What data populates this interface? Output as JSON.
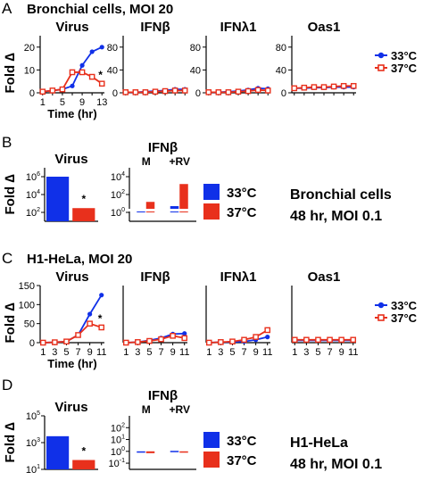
{
  "colors": {
    "c33": "#1030e8",
    "c37": "#e8301c",
    "axis": "#000000"
  },
  "chart_data": [
    {
      "panel": "A",
      "type": "line",
      "title": "Bronchial cells, MOI 20",
      "ylabel": "Fold ∆",
      "xlabel": "Time (hr)",
      "legend": {
        "placement": "right",
        "entries": [
          "33°C",
          "37°C"
        ]
      },
      "subplots": [
        {
          "title": "Virus",
          "ylim": [
            0,
            25
          ],
          "yticks": [
            "0",
            "10",
            "20"
          ],
          "xticks": [
            "1",
            "5",
            "9",
            "13"
          ],
          "annotation": "*",
          "x": [
            1,
            3,
            5,
            7,
            9,
            11,
            13
          ],
          "series": [
            {
              "name": "33°C",
              "values": [
                0.5,
                1,
                1.5,
                3,
                12,
                18,
                20
              ]
            },
            {
              "name": "37°C",
              "values": [
                0.5,
                1,
                1.5,
                9,
                9,
                7,
                4
              ]
            }
          ]
        },
        {
          "title": "IFNβ",
          "ylim": [
            0,
            100
          ],
          "yticks": [
            "0",
            "40",
            "80"
          ],
          "xticks": [],
          "x": [
            1,
            3,
            5,
            7,
            9,
            11,
            13
          ],
          "series": [
            {
              "name": "33°C",
              "values": [
                1,
                1,
                2,
                3,
                4,
                6,
                6
              ]
            },
            {
              "name": "37°C",
              "values": [
                1,
                1,
                1,
                2,
                3,
                4,
                4
              ]
            }
          ]
        },
        {
          "title": "IFNλ1",
          "ylim": [
            0,
            100
          ],
          "yticks": [
            "0",
            "40",
            "80"
          ],
          "xticks": [],
          "x": [
            1,
            3,
            5,
            7,
            9,
            11,
            13
          ],
          "series": [
            {
              "name": "33°C",
              "values": [
                1,
                1,
                2,
                3,
                5,
                8,
                7
              ]
            },
            {
              "name": "37°C",
              "values": [
                1,
                1,
                1,
                2,
                3,
                5,
                4
              ]
            }
          ]
        },
        {
          "title": "Oas1",
          "ylim": [
            0,
            100
          ],
          "yticks": [
            "0",
            "40",
            "80"
          ],
          "xticks": [],
          "x": [
            1,
            3,
            5,
            7,
            9,
            11,
            13
          ],
          "series": [
            {
              "name": "33°C",
              "values": [
                8,
                8,
                9,
                9,
                10,
                10,
                10
              ]
            },
            {
              "name": "37°C",
              "values": [
                8,
                9,
                10,
                10,
                11,
                12,
                12
              ]
            }
          ]
        }
      ]
    },
    {
      "panel": "B",
      "type": "bar",
      "ylabel": "Fold ∆",
      "legend": {
        "placement": "right",
        "entries": [
          "33°C",
          "37°C"
        ]
      },
      "note": [
        "Bronchial cells",
        "48 hr, MOI 0.1"
      ],
      "subplots": [
        {
          "title": "Virus",
          "yscale": "log",
          "ylim": [
            10,
            10000000
          ],
          "yticks": [
            {
              "base": "10",
              "exp": "2",
              "v": 100
            },
            {
              "base": "10",
              "exp": "4",
              "v": 10000
            },
            {
              "base": "10",
              "exp": "6",
              "v": 1000000
            }
          ],
          "annotation": "*",
          "bars": [
            {
              "name": "33°C",
              "value": 1000000
            },
            {
              "name": "37°C",
              "value": 300
            }
          ]
        },
        {
          "title": "IFNβ",
          "yscale": "log",
          "ylim": [
            0.1,
            100000
          ],
          "break": true,
          "yticks": [
            {
              "base": "10",
              "exp": "0",
              "v": 1
            },
            {
              "base": "10",
              "exp": "2",
              "v": 100
            },
            {
              "base": "10",
              "exp": "4",
              "v": 10000
            }
          ],
          "groups": [
            "M",
            "+RV"
          ],
          "bars": [
            {
              "group": "M",
              "name": "33°C",
              "value": 1.5
            },
            {
              "group": "M",
              "name": "37°C",
              "value": 15
            },
            {
              "group": "+RV",
              "name": "33°C",
              "value": 5
            },
            {
              "group": "+RV",
              "name": "37°C",
              "value": 1500
            }
          ]
        }
      ]
    },
    {
      "panel": "C",
      "type": "line",
      "title": "H1-HeLa, MOI 20",
      "ylabel": "Fold ∆",
      "xlabel": "Time (hr)",
      "legend": {
        "placement": "right",
        "entries": [
          "33°C",
          "37°C"
        ]
      },
      "subplots": [
        {
          "title": "Virus",
          "ylim": [
            0,
            150
          ],
          "yticks": [
            "0",
            "50",
            "100",
            "150"
          ],
          "xticks": [
            "1",
            "3",
            "5",
            "7",
            "9",
            "11"
          ],
          "annotation": "*",
          "x": [
            1,
            3,
            5,
            7,
            9,
            11
          ],
          "series": [
            {
              "name": "33°C",
              "values": [
                0,
                1,
                3,
                20,
                75,
                125
              ]
            },
            {
              "name": "37°C",
              "values": [
                0,
                1,
                3,
                20,
                50,
                40
              ]
            }
          ]
        },
        {
          "title": "IFNβ",
          "ylim": [
            0,
            100
          ],
          "yticks": [],
          "xticks": [
            "1",
            "3",
            "5",
            "7",
            "9",
            "11"
          ],
          "x": [
            1,
            3,
            5,
            7,
            9,
            11
          ],
          "series": [
            {
              "name": "33°C",
              "values": [
                0,
                1,
                4,
                8,
                15,
                16
              ]
            },
            {
              "name": "37°C",
              "values": [
                0,
                1,
                3,
                6,
                12,
                8
              ]
            }
          ]
        },
        {
          "title": "IFNλ1",
          "ylim": [
            0,
            100
          ],
          "yticks": [],
          "xticks": [
            "1",
            "3",
            "5",
            "7",
            "9",
            "11"
          ],
          "x": [
            1,
            3,
            5,
            7,
            9,
            11
          ],
          "series": [
            {
              "name": "33°C",
              "values": [
                0,
                1,
                1,
                2,
                5,
                10
              ]
            },
            {
              "name": "37°C",
              "values": [
                0,
                1,
                2,
                5,
                10,
                22
              ]
            }
          ]
        },
        {
          "title": "Oas1",
          "ylim": [
            0,
            100
          ],
          "yticks": [],
          "xticks": [
            "1",
            "3",
            "5",
            "7",
            "9",
            "11"
          ],
          "x": [
            1,
            3,
            5,
            7,
            9,
            11
          ],
          "series": [
            {
              "name": "33°C",
              "values": [
                4,
                4,
                4,
                4,
                4,
                4
              ]
            },
            {
              "name": "37°C",
              "values": [
                5,
                5,
                5,
                5,
                5,
                5
              ]
            }
          ]
        }
      ]
    },
    {
      "panel": "D",
      "type": "bar",
      "ylabel": "Fold ∆",
      "legend": {
        "placement": "right",
        "entries": [
          "33°C",
          "37°C"
        ]
      },
      "note": [
        "H1-HeLa",
        "48 hr, MOI 0.1"
      ],
      "subplots": [
        {
          "title": "Virus",
          "yscale": "log",
          "ylim": [
            10,
            100000
          ],
          "yticks": [
            {
              "base": "10",
              "exp": "1",
              "v": 10
            },
            {
              "base": "10",
              "exp": "3",
              "v": 1000
            },
            {
              "base": "10",
              "exp": "5",
              "v": 100000
            }
          ],
          "annotation": "*",
          "bars": [
            {
              "name": "33°C",
              "value": 3000
            },
            {
              "name": "37°C",
              "value": 50
            }
          ]
        },
        {
          "title": "IFNβ",
          "yscale": "log",
          "ylim": [
            0.03,
            1000
          ],
          "yticks": [
            {
              "base": "10",
              "exp": "-1",
              "v": 0.1
            },
            {
              "base": "10",
              "exp": "0",
              "v": 1
            },
            {
              "base": "10",
              "exp": "1",
              "v": 10
            },
            {
              "base": "10",
              "exp": "2",
              "v": 100
            }
          ],
          "groups": [
            "M",
            "+RV"
          ],
          "bars": [
            {
              "group": "M",
              "name": "33°C",
              "value": 1
            },
            {
              "group": "M",
              "name": "37°C",
              "value": 0.7
            },
            {
              "group": "+RV",
              "name": "33°C",
              "value": 1.1
            },
            {
              "group": "+RV",
              "name": "37°C",
              "value": 0.8
            }
          ]
        }
      ]
    }
  ]
}
